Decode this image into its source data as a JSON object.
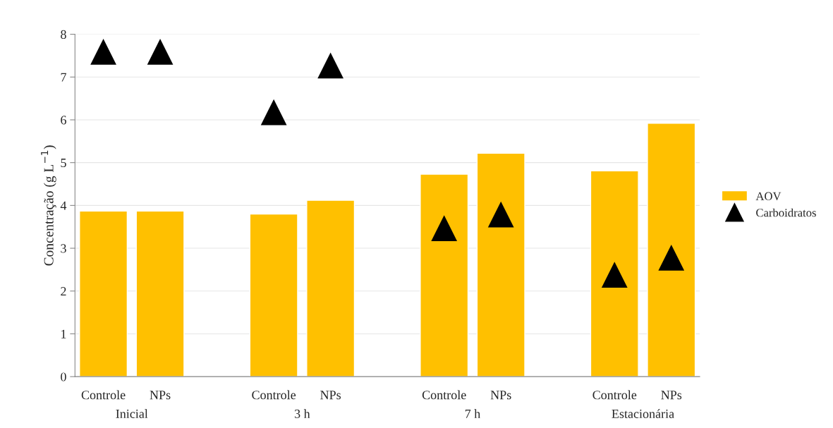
{
  "chart_data": {
    "type": "bar",
    "ylabel": "Concentração (g L$^{−1}$)",
    "categories": [
      "Controle",
      "NPs",
      null,
      "Controle",
      "NPs",
      null,
      "Controle",
      "NPs",
      null,
      "Controle",
      "NPs"
    ],
    "series": [
      {
        "name": "AOV",
        "color": "#ffc000",
        "values": [
          3.87,
          3.87,
          null,
          3.8,
          4.12,
          null,
          4.73,
          5.22,
          null,
          4.81,
          5.92
        ]
      },
      {
        "name": "Carboidratos",
        "type": "scatter",
        "marker": "triangle",
        "color": "#000000",
        "values": [
          7.59,
          7.59,
          null,
          6.18,
          7.27,
          null,
          3.47,
          3.79,
          null,
          2.38,
          2.78
        ]
      }
    ],
    "annotations": [
      "Inicial",
      "3 h",
      "7 h",
      "Estacionária"
    ],
    "ylim": [
      0,
      8
    ],
    "yticks": [
      0,
      1,
      2,
      3,
      4,
      5,
      6,
      7,
      8
    ],
    "grid": "y",
    "legend": "right"
  }
}
